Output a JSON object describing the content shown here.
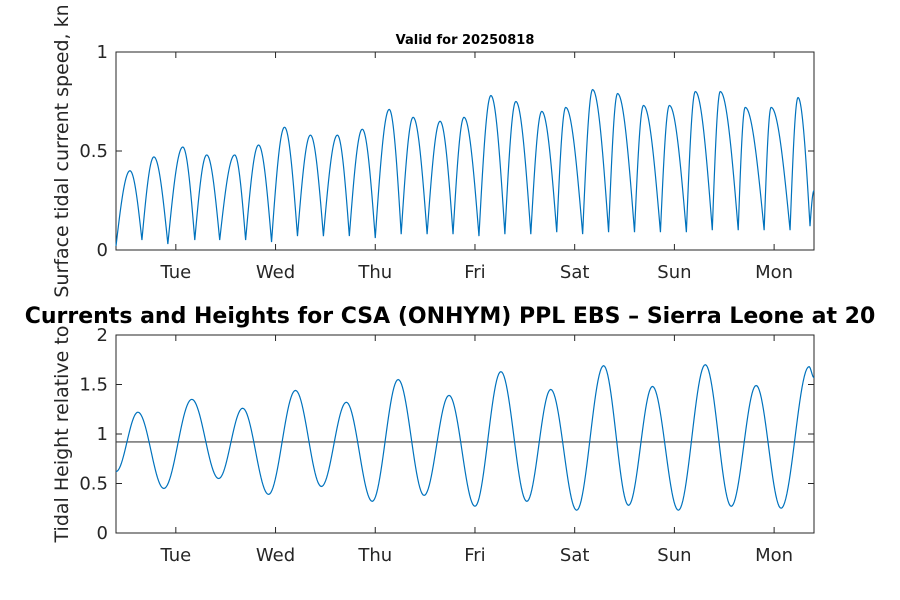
{
  "chart_data": [
    {
      "type": "line",
      "title": "Valid for 20250818",
      "ylabel": "Surface tidal current speed, kn",
      "ylim": [
        0,
        1
      ],
      "yticks": [
        "0",
        "0.5",
        "1"
      ],
      "xticks": [
        "Tue",
        "Wed",
        "Thu",
        "Fri",
        "Sat",
        "Sun",
        "Mon"
      ],
      "x_range_days": [
        0,
        7.0
      ],
      "grid": false,
      "line_color": "#0072BD",
      "series": [
        {
          "peaks": [
            {
              "x": 0.14,
              "y": 0.4
            },
            {
              "x": 0.38,
              "y": 0.47
            },
            {
              "x": 0.67,
              "y": 0.52
            },
            {
              "x": 0.91,
              "y": 0.48
            },
            {
              "x": 1.19,
              "y": 0.48
            },
            {
              "x": 1.43,
              "y": 0.53
            },
            {
              "x": 1.69,
              "y": 0.62
            },
            {
              "x": 1.95,
              "y": 0.58
            },
            {
              "x": 2.22,
              "y": 0.58
            },
            {
              "x": 2.47,
              "y": 0.61
            },
            {
              "x": 2.74,
              "y": 0.71
            },
            {
              "x": 2.98,
              "y": 0.67
            },
            {
              "x": 3.25,
              "y": 0.65
            },
            {
              "x": 3.49,
              "y": 0.67
            },
            {
              "x": 3.76,
              "y": 0.78
            },
            {
              "x": 4.01,
              "y": 0.75
            },
            {
              "x": 4.27,
              "y": 0.7
            },
            {
              "x": 4.51,
              "y": 0.72
            },
            {
              "x": 4.78,
              "y": 0.81
            },
            {
              "x": 5.03,
              "y": 0.79
            },
            {
              "x": 5.29,
              "y": 0.73
            },
            {
              "x": 5.55,
              "y": 0.73
            },
            {
              "x": 5.81,
              "y": 0.8
            },
            {
              "x": 6.06,
              "y": 0.8
            },
            {
              "x": 6.31,
              "y": 0.72
            },
            {
              "x": 6.57,
              "y": 0.72
            },
            {
              "x": 6.84,
              "y": 0.77
            }
          ],
          "troughs": [
            {
              "x": 0.0,
              "y": 0.02
            },
            {
              "x": 0.26,
              "y": 0.05
            },
            {
              "x": 0.52,
              "y": 0.03
            },
            {
              "x": 0.79,
              "y": 0.05
            },
            {
              "x": 1.04,
              "y": 0.05
            },
            {
              "x": 1.3,
              "y": 0.05
            },
            {
              "x": 1.56,
              "y": 0.04
            },
            {
              "x": 1.82,
              "y": 0.07
            },
            {
              "x": 2.08,
              "y": 0.07
            },
            {
              "x": 2.34,
              "y": 0.07
            },
            {
              "x": 2.6,
              "y": 0.06
            },
            {
              "x": 2.86,
              "y": 0.08
            },
            {
              "x": 3.12,
              "y": 0.08
            },
            {
              "x": 3.38,
              "y": 0.08
            },
            {
              "x": 3.64,
              "y": 0.07
            },
            {
              "x": 3.9,
              "y": 0.08
            },
            {
              "x": 4.16,
              "y": 0.08
            },
            {
              "x": 4.42,
              "y": 0.09
            },
            {
              "x": 4.68,
              "y": 0.08
            },
            {
              "x": 4.94,
              "y": 0.09
            },
            {
              "x": 5.2,
              "y": 0.09
            },
            {
              "x": 5.46,
              "y": 0.09
            },
            {
              "x": 5.72,
              "y": 0.09
            },
            {
              "x": 5.98,
              "y": 0.1
            },
            {
              "x": 6.24,
              "y": 0.1
            },
            {
              "x": 6.5,
              "y": 0.1
            },
            {
              "x": 6.76,
              "y": 0.1
            },
            {
              "x": 6.96,
              "y": 0.12
            }
          ],
          "end": {
            "x": 7.0,
            "y": 0.3
          }
        }
      ]
    },
    {
      "type": "line",
      "title": "Currents and Heights for CSA (ONHYM) PPL EBS  – Sierra Leone at 20",
      "ylabel": "Tidal Height relative to",
      "ylim": [
        0,
        2
      ],
      "yticks": [
        "0",
        "0.5",
        "1",
        "1.5",
        "2"
      ],
      "xticks": [
        "Tue",
        "Wed",
        "Thu",
        "Fri",
        "Sat",
        "Sun",
        "Mon"
      ],
      "x_range_days": [
        0,
        7.0
      ],
      "grid": false,
      "line_color": "#0072BD",
      "reference_line": {
        "y": 0.92,
        "color": "#404040"
      },
      "series": [
        {
          "start": {
            "x": 0.0,
            "y": 0.62
          },
          "extrema": [
            {
              "x": 0.22,
              "y": 1.22
            },
            {
              "x": 0.48,
              "y": 0.45
            },
            {
              "x": 0.76,
              "y": 1.35
            },
            {
              "x": 1.03,
              "y": 0.55
            },
            {
              "x": 1.27,
              "y": 1.26
            },
            {
              "x": 1.53,
              "y": 0.39
            },
            {
              "x": 1.8,
              "y": 1.44
            },
            {
              "x": 2.06,
              "y": 0.47
            },
            {
              "x": 2.31,
              "y": 1.32
            },
            {
              "x": 2.57,
              "y": 0.32
            },
            {
              "x": 2.83,
              "y": 1.55
            },
            {
              "x": 3.09,
              "y": 0.38
            },
            {
              "x": 3.34,
              "y": 1.39
            },
            {
              "x": 3.6,
              "y": 0.27
            },
            {
              "x": 3.86,
              "y": 1.63
            },
            {
              "x": 4.12,
              "y": 0.32
            },
            {
              "x": 4.36,
              "y": 1.45
            },
            {
              "x": 4.62,
              "y": 0.23
            },
            {
              "x": 4.89,
              "y": 1.69
            },
            {
              "x": 5.14,
              "y": 0.28
            },
            {
              "x": 5.38,
              "y": 1.48
            },
            {
              "x": 5.64,
              "y": 0.23
            },
            {
              "x": 5.91,
              "y": 1.7
            },
            {
              "x": 6.17,
              "y": 0.27
            },
            {
              "x": 6.42,
              "y": 1.49
            },
            {
              "x": 6.67,
              "y": 0.25
            },
            {
              "x": 6.95,
              "y": 1.68
            }
          ],
          "end": {
            "x": 7.0,
            "y": 1.57
          }
        }
      ]
    }
  ]
}
